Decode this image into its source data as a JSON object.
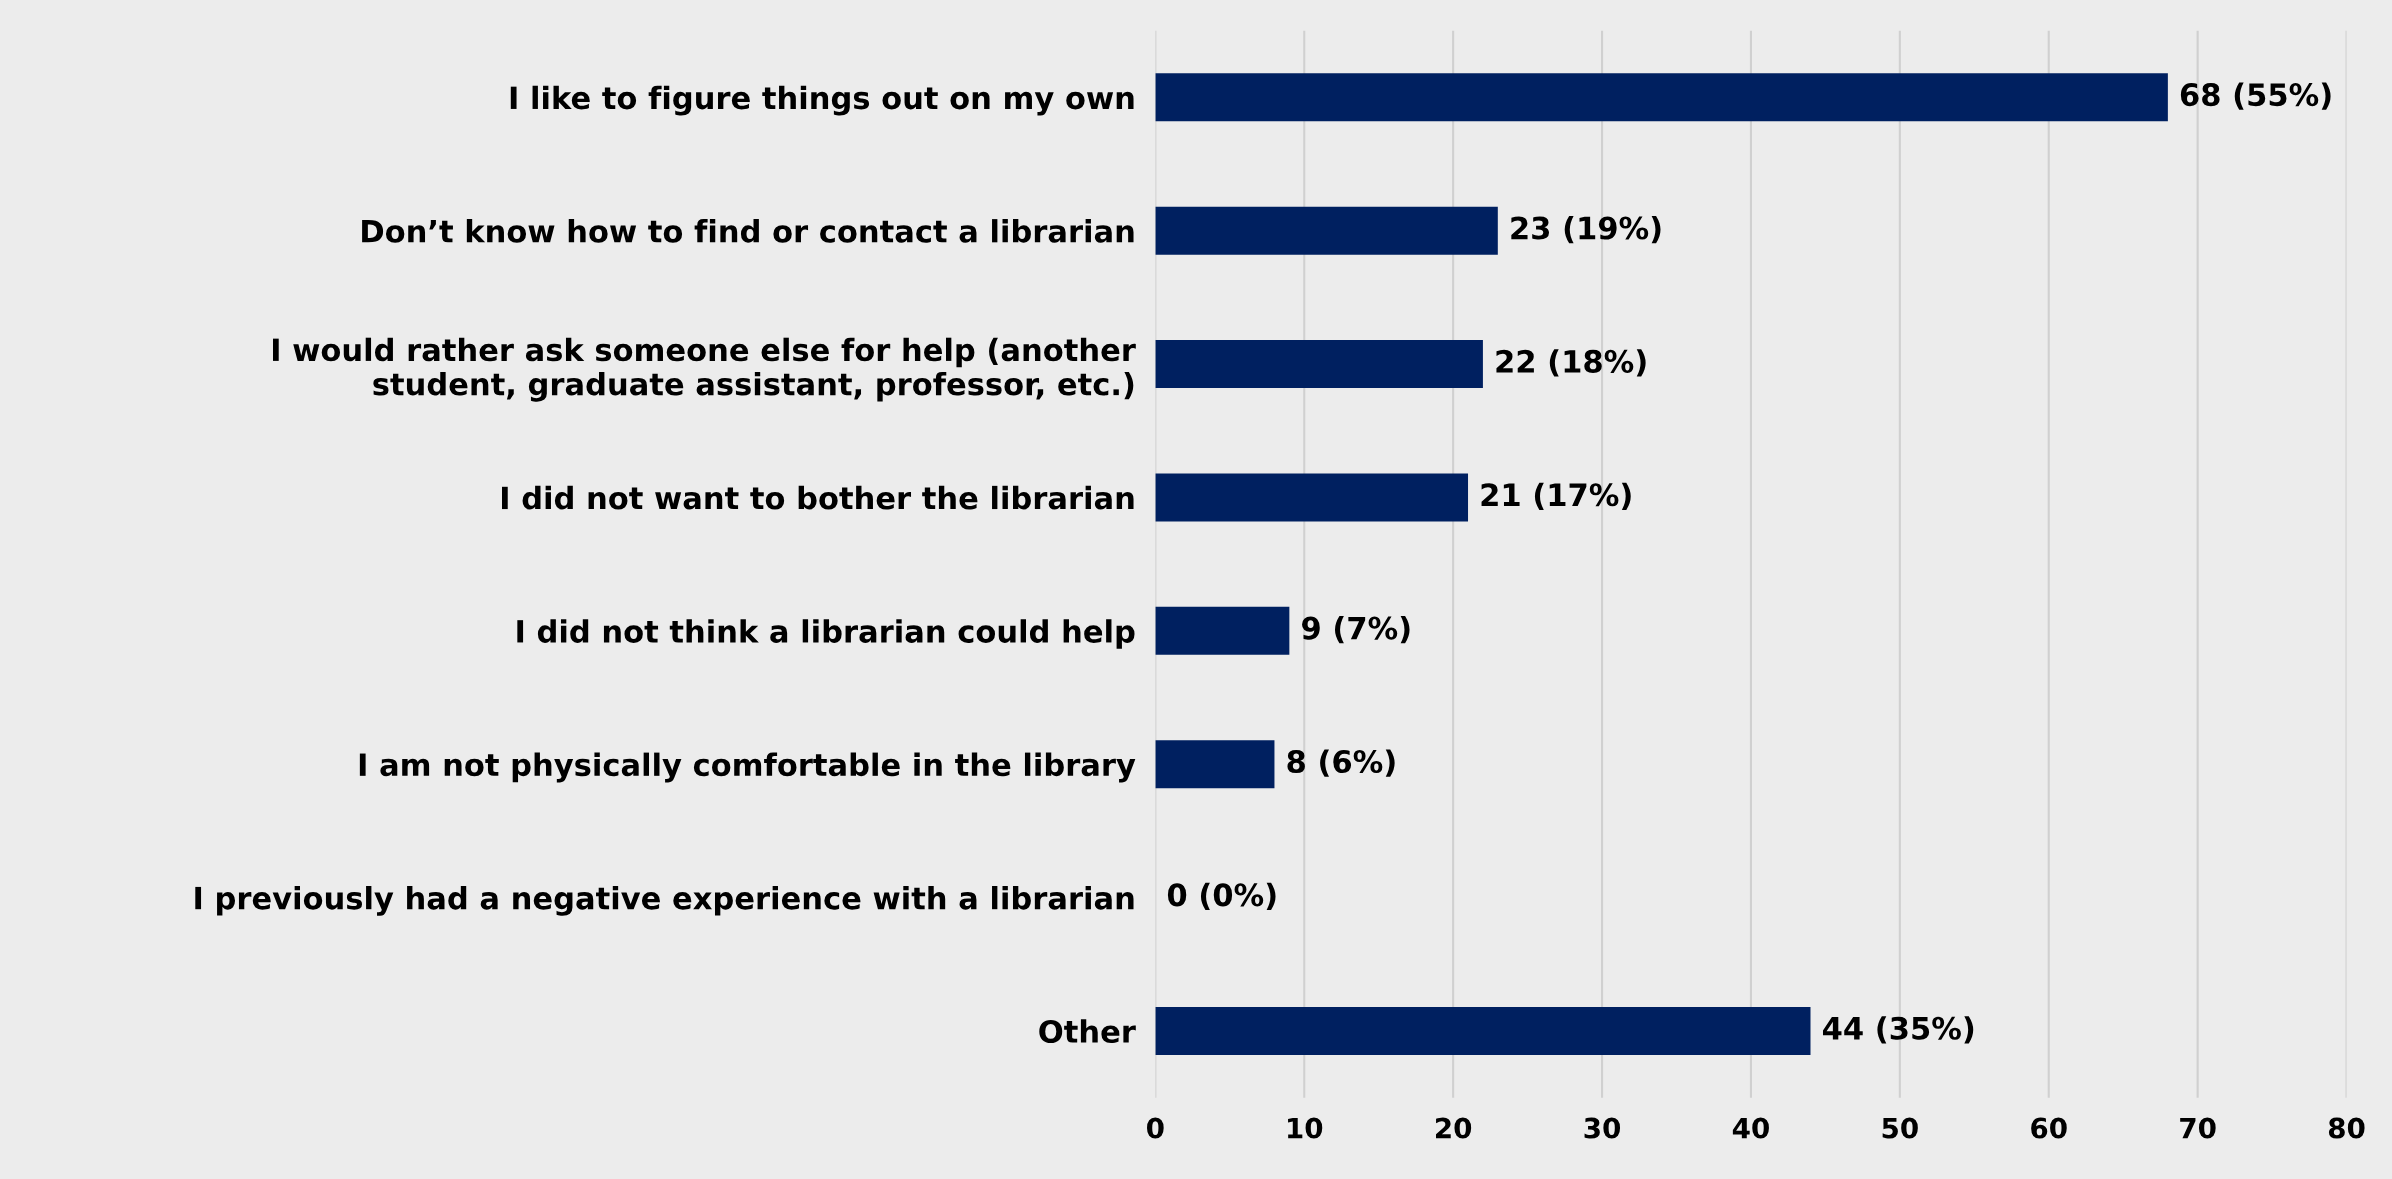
{
  "chart_data": {
    "type": "bar",
    "orientation": "horizontal",
    "categories": [
      "I like to figure things out on my own",
      "Don’t know how to find or contact a librarian",
      "I would rather ask someone else for help (another\nstudent, graduate assistant, professor, etc.)",
      "I did not want to bother the librarian",
      "I did not think a librarian could help",
      "I am not physically comfortable in the library",
      "I previously had a negative experience with a librarian",
      "Other"
    ],
    "values": [
      68,
      23,
      22,
      21,
      9,
      8,
      0,
      44
    ],
    "value_labels": [
      "68 (55%)",
      "23 (19%)",
      "22 (18%)",
      "21 (17%)",
      "9 (7%)",
      "8 (6%)",
      "0 (0%)",
      "44 (35%)"
    ],
    "color": "#002060",
    "xlim": [
      0,
      80
    ],
    "xticks": [
      0,
      10,
      20,
      30,
      40,
      50,
      60,
      70,
      80
    ],
    "grid": "x",
    "legend": false
  }
}
